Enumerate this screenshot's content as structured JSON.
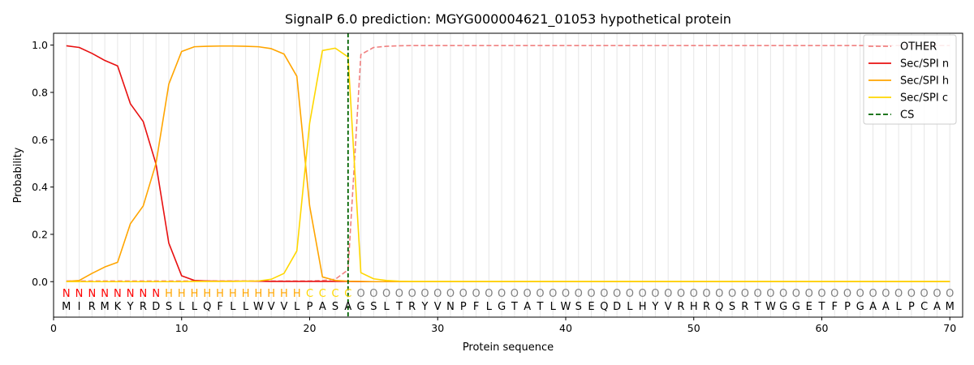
{
  "chart_data": {
    "type": "line",
    "title": "SignalP 6.0 prediction: MGYG000004621_01053 hypothetical protein",
    "xlabel": "Protein sequence",
    "ylabel": "Probability",
    "xlim": [
      0,
      71
    ],
    "ylim": [
      -0.15,
      1.05
    ],
    "x_ticks": [
      0,
      10,
      20,
      30,
      40,
      50,
      60,
      70
    ],
    "y_ticks": [
      0.0,
      0.2,
      0.4,
      0.6,
      0.8,
      1.0
    ],
    "y_tick_labels": [
      "0.0",
      "0.2",
      "0.4",
      "0.6",
      "0.8",
      "1.0"
    ],
    "x_tick_labels": [
      "0",
      "10",
      "20",
      "30",
      "40",
      "50",
      "60",
      "70"
    ],
    "grid": "vertical lines at every residue",
    "legend_position": "top-right",
    "sequence": [
      "M",
      "I",
      "R",
      "M",
      "K",
      "Y",
      "R",
      "D",
      "S",
      "L",
      "L",
      "Q",
      "F",
      "L",
      "L",
      "W",
      "V",
      "V",
      "L",
      "P",
      "A",
      "S",
      "A",
      "G",
      "S",
      "L",
      "T",
      "R",
      "Y",
      "V",
      "N",
      "P",
      "F",
      "L",
      "G",
      "T",
      "A",
      "T",
      "L",
      "W",
      "S",
      "E",
      "Q",
      "D",
      "L",
      "H",
      "Y",
      "V",
      "R",
      "H",
      "R",
      "Q",
      "S",
      "R",
      "T",
      "W",
      "G",
      "G",
      "E",
      "T",
      "F",
      "P",
      "G",
      "A",
      "A",
      "L",
      "P",
      "C",
      "A",
      "M"
    ],
    "region_labels": [
      "N",
      "N",
      "N",
      "N",
      "N",
      "N",
      "N",
      "N",
      "H",
      "H",
      "H",
      "H",
      "H",
      "H",
      "H",
      "H",
      "H",
      "H",
      "H",
      "C",
      "C",
      "C",
      "C",
      "O",
      "O",
      "O",
      "O",
      "O",
      "O",
      "O",
      "O",
      "O",
      "O",
      "O",
      "O",
      "O",
      "O",
      "O",
      "O",
      "O",
      "O",
      "O",
      "O",
      "O",
      "O",
      "O",
      "O",
      "O",
      "O",
      "O",
      "O",
      "O",
      "O",
      "O",
      "O",
      "O",
      "O",
      "O",
      "O",
      "O",
      "O",
      "O",
      "O",
      "O",
      "O",
      "O",
      "O",
      "O",
      "O",
      "O"
    ],
    "region_colors": {
      "N": "#ff0000",
      "H": "#ffa500",
      "C": "#ffd700",
      "O": "#808080"
    },
    "series": [
      {
        "name": "OTHER",
        "color": "#f08080",
        "dash": "dashed",
        "values": [
          0.003,
          0.003,
          0.003,
          0.003,
          0.003,
          0.003,
          0.003,
          0.003,
          0.003,
          0.003,
          0.003,
          0.003,
          0.003,
          0.003,
          0.003,
          0.003,
          0.003,
          0.003,
          0.003,
          0.003,
          0.005,
          0.01,
          0.05,
          0.96,
          0.99,
          0.995,
          0.997,
          0.998,
          0.998,
          0.998,
          0.998,
          0.998,
          0.998,
          0.998,
          0.998,
          0.998,
          0.998,
          0.998,
          0.998,
          0.998,
          0.998,
          0.998,
          0.998,
          0.998,
          0.998,
          0.998,
          0.998,
          0.998,
          0.998,
          0.998,
          0.998,
          0.998,
          0.998,
          0.998,
          0.998,
          0.998,
          0.998,
          0.998,
          0.998,
          0.998,
          0.998,
          0.998,
          0.998,
          0.998,
          0.998,
          0.998,
          0.998,
          0.998,
          0.998,
          0.998
        ]
      },
      {
        "name": "Sec/SPI n",
        "color": "#e81010",
        "dash": "solid",
        "values": [
          0.997,
          0.99,
          0.965,
          0.935,
          0.912,
          0.752,
          0.677,
          0.497,
          0.163,
          0.025,
          0.005,
          0.003,
          0.002,
          0.002,
          0.002,
          0.002,
          0.001,
          0.001,
          0.001,
          0.001,
          0.001,
          0.001,
          0.001,
          0.0,
          0.0,
          0.0,
          0.0,
          0.0,
          0.0,
          0.0,
          0.0,
          0.0,
          0.0,
          0.0,
          0.0,
          0.0,
          0.0,
          0.0,
          0.0,
          0.0,
          0.0,
          0.0,
          0.0,
          0.0,
          0.0,
          0.0,
          0.0,
          0.0,
          0.0,
          0.0,
          0.0,
          0.0,
          0.0,
          0.0,
          0.0,
          0.0,
          0.0,
          0.0,
          0.0,
          0.0,
          0.0,
          0.0,
          0.0,
          0.0,
          0.0,
          0.0,
          0.0,
          0.0,
          0.0,
          0.0
        ]
      },
      {
        "name": "Sec/SPI h",
        "color": "#ffa500",
        "dash": "solid",
        "values": [
          0.001,
          0.005,
          0.035,
          0.062,
          0.082,
          0.245,
          0.32,
          0.5,
          0.835,
          0.973,
          0.993,
          0.995,
          0.996,
          0.996,
          0.995,
          0.993,
          0.985,
          0.962,
          0.868,
          0.32,
          0.02,
          0.005,
          0.002,
          0.001,
          0.0,
          0.0,
          0.0,
          0.0,
          0.0,
          0.0,
          0.0,
          0.0,
          0.0,
          0.0,
          0.0,
          0.0,
          0.0,
          0.0,
          0.0,
          0.0,
          0.0,
          0.0,
          0.0,
          0.0,
          0.0,
          0.0,
          0.0,
          0.0,
          0.0,
          0.0,
          0.0,
          0.0,
          0.0,
          0.0,
          0.0,
          0.0,
          0.0,
          0.0,
          0.0,
          0.0,
          0.0,
          0.0,
          0.0,
          0.0,
          0.0,
          0.0,
          0.0,
          0.0,
          0.0,
          0.0
        ]
      },
      {
        "name": "Sec/SPI c",
        "color": "#ffd700",
        "dash": "solid",
        "values": [
          0.0,
          0.0,
          0.0,
          0.0,
          0.0,
          0.0,
          0.0,
          0.0,
          0.0,
          0.0,
          0.001,
          0.001,
          0.001,
          0.001,
          0.002,
          0.003,
          0.01,
          0.035,
          0.13,
          0.67,
          0.977,
          0.987,
          0.95,
          0.038,
          0.012,
          0.005,
          0.002,
          0.001,
          0.001,
          0.001,
          0.001,
          0.001,
          0.001,
          0.001,
          0.001,
          0.001,
          0.001,
          0.001,
          0.001,
          0.001,
          0.001,
          0.001,
          0.001,
          0.001,
          0.001,
          0.001,
          0.001,
          0.001,
          0.001,
          0.001,
          0.001,
          0.001,
          0.001,
          0.001,
          0.001,
          0.001,
          0.001,
          0.001,
          0.001,
          0.001,
          0.001,
          0.001,
          0.001,
          0.001,
          0.001,
          0.001,
          0.001,
          0.001,
          0.001,
          0.001
        ]
      }
    ],
    "cleavage_site": {
      "name": "CS",
      "x": 23,
      "color": "#006400",
      "dash": "dashed"
    }
  }
}
